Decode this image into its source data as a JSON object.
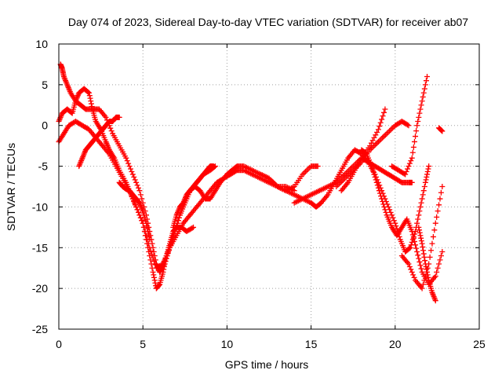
{
  "chart_data": {
    "type": "scatter",
    "title": "Day 074 of 2023, Sidereal Day-to-day VTEC variation (SDTVAR) for receiver ab07",
    "xlabel": "GPS time / hours",
    "ylabel": "SDTVAR / TECUs",
    "xlim": [
      0,
      25
    ],
    "ylim": [
      -25,
      10
    ],
    "xticks": [
      0,
      5,
      10,
      15,
      20,
      25
    ],
    "yticks": [
      -25,
      -20,
      -15,
      -10,
      -5,
      0,
      5,
      10
    ],
    "grid": true,
    "legend": "none",
    "marker": "+",
    "series_color": "#ff0000",
    "series": [
      {
        "x": [
          0.0,
          0.2,
          0.5,
          0.8,
          1.0,
          1.2,
          1.5,
          1.8,
          2.0,
          2.2,
          2.5,
          2.8,
          3.0,
          3.3,
          3.6,
          4.0,
          4.3,
          4.6,
          5.0,
          5.3,
          5.6,
          5.8,
          6.0,
          6.2,
          6.4,
          6.6,
          6.8,
          7.0,
          7.3,
          7.6,
          8.0
        ],
        "y": [
          0.5,
          1.5,
          2.0,
          1.5,
          3.0,
          4.0,
          4.5,
          4.0,
          2.0,
          0.5,
          -0.5,
          -2.0,
          -3.0,
          -4.0,
          -5.5,
          -7.0,
          -8.5,
          -10.0,
          -12.0,
          -15.0,
          -18.0,
          -20.0,
          -19.5,
          -18.0,
          -16.0,
          -14.5,
          -13.0,
          -12.5,
          -12.5,
          -13.0,
          -12.5
        ]
      },
      {
        "x": [
          0.1,
          0.2,
          0.3,
          0.5,
          0.7,
          1.0,
          1.3,
          1.6,
          2.0,
          2.4,
          2.8,
          3.2,
          3.6,
          4.0,
          4.4,
          4.8,
          5.2,
          5.5,
          5.8,
          6.0,
          6.3,
          6.6,
          6.9,
          7.2,
          7.5,
          7.8,
          8.2,
          8.6,
          9.0,
          9.3
        ],
        "y": [
          7.5,
          7.0,
          6.0,
          5.0,
          4.0,
          3.0,
          2.5,
          2.0,
          2.0,
          2.0,
          1.0,
          -1.0,
          -2.5,
          -4.0,
          -6.0,
          -8.0,
          -11.0,
          -14.0,
          -17.0,
          -18.0,
          -17.0,
          -15.0,
          -13.0,
          -11.0,
          -9.5,
          -8.0,
          -7.0,
          -6.0,
          -5.5,
          -5.0
        ]
      },
      {
        "x": [
          0.0,
          0.3,
          0.6,
          1.0,
          1.4,
          1.8,
          2.2,
          2.6,
          3.0,
          3.4,
          3.8,
          4.2,
          4.6,
          5.0,
          5.4,
          5.8,
          6.2,
          6.6,
          7.0,
          7.4,
          7.8,
          8.2,
          8.6,
          9.0,
          9.4,
          9.8,
          10.2,
          10.6,
          11.0,
          11.5,
          12.0,
          12.5,
          13.0,
          13.5,
          14.0
        ],
        "y": [
          -2.0,
          -1.0,
          0.0,
          0.5,
          0.0,
          -0.5,
          -1.5,
          -2.5,
          -3.5,
          -5.0,
          -6.5,
          -8.0,
          -10.0,
          -12.0,
          -15.0,
          -17.5,
          -17.0,
          -15.0,
          -13.5,
          -12.0,
          -11.0,
          -10.0,
          -9.0,
          -8.0,
          -7.0,
          -6.5,
          -6.0,
          -5.5,
          -5.5,
          -6.0,
          -6.5,
          -7.0,
          -7.5,
          -7.5,
          -8.0
        ]
      },
      {
        "x": [
          1.2,
          1.4,
          1.6,
          1.8,
          2.0,
          2.2,
          2.4,
          2.6,
          2.8,
          3.0,
          3.2,
          3.4,
          3.6
        ],
        "y": [
          -5.0,
          -4.0,
          -3.0,
          -2.5,
          -2.0,
          -1.5,
          -1.0,
          -0.5,
          0.0,
          0.5,
          0.5,
          1.0,
          1.0
        ]
      },
      {
        "x": [
          3.6,
          3.8,
          4.0,
          4.2,
          4.4,
          4.6,
          4.8,
          5.0,
          5.2,
          5.4
        ],
        "y": [
          -7.0,
          -7.5,
          -7.8,
          -8.0,
          -8.5,
          -9.0,
          -9.5,
          -10.5,
          -12.0,
          -14.0
        ]
      },
      {
        "x": [
          6.0,
          6.3,
          6.6,
          6.9,
          7.2,
          7.5,
          7.8,
          8.1,
          8.4,
          8.7,
          9.0,
          9.3,
          9.6,
          10.0,
          10.3,
          10.6,
          11.0,
          11.5,
          12.0,
          12.5,
          13.0,
          13.5,
          14.0,
          14.5,
          15.0,
          15.4
        ],
        "y": [
          -18.0,
          -16.5,
          -15.0,
          -13.0,
          -11.0,
          -9.5,
          -8.0,
          -7.5,
          -8.0,
          -9.0,
          -9.0,
          -8.0,
          -7.0,
          -6.0,
          -5.5,
          -5.0,
          -5.0,
          -5.5,
          -6.0,
          -6.5,
          -7.5,
          -8.0,
          -7.5,
          -6.0,
          -5.0,
          -5.0
        ]
      },
      {
        "x": [
          6.8,
          7.0,
          7.2,
          7.4,
          7.6,
          7.8,
          8.0,
          8.2,
          8.4,
          8.6,
          8.8,
          9.0,
          9.2
        ],
        "y": [
          -12.5,
          -11.0,
          -10.0,
          -9.5,
          -8.5,
          -8.0,
          -7.5,
          -7.0,
          -6.5,
          -6.0,
          -5.5,
          -5.0,
          -5.0
        ]
      },
      {
        "x": [
          12.0,
          12.5,
          13.0,
          13.5,
          14.0,
          14.5,
          15.0,
          15.3,
          15.6,
          16.0,
          16.4,
          16.8,
          17.2,
          17.6,
          18.0,
          18.4,
          18.8,
          19.2,
          19.6,
          20.0,
          20.4,
          20.8,
          21.0
        ],
        "y": [
          -6.0,
          -6.5,
          -7.5,
          -8.0,
          -8.5,
          -9.0,
          -9.5,
          -10.0,
          -9.5,
          -8.5,
          -7.0,
          -5.5,
          -4.0,
          -3.0,
          -3.5,
          -4.5,
          -5.0,
          -5.5,
          -6.0,
          -6.5,
          -7.0,
          -7.0,
          -7.0
        ]
      },
      {
        "x": [
          14.0,
          14.5,
          15.0,
          15.5,
          16.0,
          16.5,
          17.0,
          17.5,
          18.0,
          18.5,
          19.0,
          19.4
        ],
        "y": [
          -9.5,
          -9.0,
          -8.5,
          -8.0,
          -7.5,
          -7.0,
          -6.0,
          -5.0,
          -4.0,
          -2.5,
          -0.5,
          2.0
        ]
      },
      {
        "x": [
          16.5,
          17.0,
          17.5,
          18.0,
          18.5,
          19.0,
          19.5,
          20.0,
          20.4,
          20.8
        ],
        "y": [
          -7.5,
          -6.5,
          -5.5,
          -4.5,
          -3.0,
          -2.0,
          -1.0,
          0.0,
          0.5,
          0.0
        ]
      },
      {
        "x": [
          16.8,
          17.2,
          17.6,
          18.0,
          18.4,
          18.8,
          19.2,
          19.6,
          20.0,
          20.3,
          20.6,
          20.9,
          21.2,
          21.5,
          21.8,
          22.0
        ],
        "y": [
          -8.0,
          -7.0,
          -5.5,
          -4.0,
          -4.5,
          -6.0,
          -8.0,
          -10.0,
          -12.0,
          -14.0,
          -15.5,
          -15.0,
          -13.0,
          -10.0,
          -7.0,
          -5.0
        ]
      },
      {
        "x": [
          18.0,
          18.3,
          18.6,
          18.9,
          19.2,
          19.5,
          19.8,
          20.1,
          20.4,
          20.7,
          21.0,
          21.3,
          21.6,
          22.0,
          22.4,
          22.8
        ],
        "y": [
          -3.0,
          -3.5,
          -5.0,
          -7.0,
          -9.0,
          -11.0,
          -12.5,
          -13.5,
          -12.5,
          -11.5,
          -13.0,
          -15.5,
          -18.0,
          -19.5,
          -18.5,
          -15.5
        ]
      },
      {
        "x": [
          19.8,
          20.2,
          20.6,
          21.0,
          21.3,
          21.6,
          21.9
        ],
        "y": [
          -5.0,
          -5.5,
          -6.0,
          -4.0,
          0.0,
          3.0,
          6.0
        ]
      },
      {
        "x": [
          20.4,
          20.8,
          21.2,
          21.6,
          22.0,
          22.4,
          22.8
        ],
        "y": [
          -16.0,
          -17.0,
          -19.0,
          -20.0,
          -17.0,
          -12.0,
          -7.5
        ]
      },
      {
        "x": [
          21.4,
          21.6,
          21.8,
          22.0,
          22.2,
          22.4
        ],
        "y": [
          -12.5,
          -14.5,
          -17.0,
          -19.0,
          -20.5,
          -21.5
        ]
      },
      {
        "x": [
          22.6,
          22.8
        ],
        "y": [
          -0.3,
          -0.7
        ]
      }
    ]
  }
}
